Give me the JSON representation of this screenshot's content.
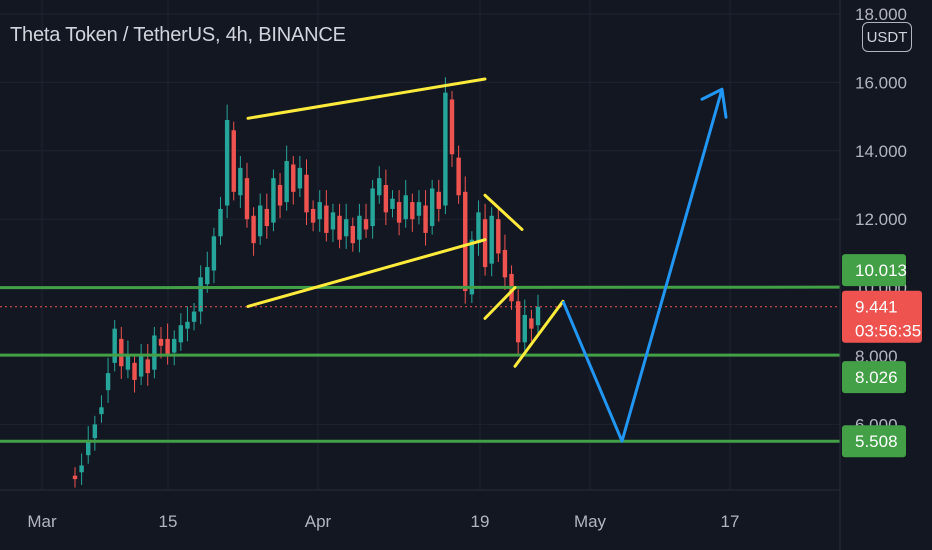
{
  "header": {
    "title": "Theta Token / TetherUS, 4h, BINANCE",
    "currency": "USDT"
  },
  "colors": {
    "background": "#131722",
    "candle_up": "#26a69a",
    "candle_down": "#ef5350",
    "support_line": "#43a047",
    "pattern_line": "#ffeb3b",
    "projection_line": "#2196f3",
    "price_line": "#ef5350"
  },
  "chart_data": {
    "type": "candlestick",
    "y_axis": {
      "ticks": [
        "18.000",
        "16.000",
        "14.000",
        "12.000",
        "10.000",
        "8.000",
        "6.000"
      ],
      "tick_values": [
        18,
        16,
        14,
        12,
        10,
        8,
        6
      ],
      "range": [
        3.8,
        18.3
      ]
    },
    "x_axis": {
      "ticks": [
        "Mar",
        "15",
        "Apr",
        "19",
        "May",
        "17"
      ]
    },
    "horizontal_levels": [
      {
        "label": "10.013",
        "value": 10.013,
        "color": "#43a047"
      },
      {
        "label": "8.026",
        "value": 8.026,
        "color": "#43a047"
      },
      {
        "label": "5.508",
        "value": 5.508,
        "color": "#43a047"
      }
    ],
    "last_price": {
      "label": "9.441",
      "value": 9.441,
      "countdown": "03:56:35",
      "color": "#ef5350"
    },
    "patterns": [
      {
        "name": "channel-upper",
        "points": [
          [
            2021.031,
            14.95
          ],
          [
            2021.0418,
            16.1
          ]
        ]
      },
      {
        "name": "channel-lower",
        "points": [
          [
            2021.031,
            9.45
          ],
          [
            2021.0418,
            11.4
          ]
        ]
      },
      {
        "name": "flag-upper",
        "points": [
          [
            2021.0418,
            12.7
          ],
          [
            2021.0422,
            11.7
          ]
        ]
      },
      {
        "name": "flag-lower",
        "points": [
          [
            2021.0418,
            9.1
          ],
          [
            2021.0421,
            10.0
          ]
        ]
      },
      {
        "name": "wedge-left",
        "points": [
          [
            2021.0421,
            7.7
          ],
          [
            2021.0424,
            9.6
          ]
        ]
      }
    ],
    "projection": {
      "points": [
        [
          2021.0424,
          9.6
        ],
        [
          2021.0505,
          5.508
        ],
        [
          2021.0515,
          15.8
        ]
      ],
      "color": "#2196f3"
    },
    "price_path": [
      [
        4.5,
        4.4
      ],
      [
        4.6,
        4.8
      ],
      [
        5.1,
        5.5
      ],
      [
        5.6,
        6.0
      ],
      [
        6.3,
        6.5
      ],
      [
        7.0,
        7.5
      ],
      [
        7.8,
        8.8
      ],
      [
        8.5,
        7.7
      ],
      [
        7.6,
        8.0
      ],
      [
        7.8,
        7.3
      ],
      [
        7.4,
        8.0
      ],
      [
        7.9,
        7.5
      ],
      [
        7.6,
        8.6
      ],
      [
        8.5,
        8.3
      ],
      [
        8.5,
        8.0
      ],
      [
        8.1,
        8.5
      ],
      [
        8.4,
        8.9
      ],
      [
        8.8,
        9.0
      ],
      [
        9.0,
        9.3
      ],
      [
        9.3,
        10.3
      ],
      [
        10.1,
        10.6
      ],
      [
        10.5,
        11.5
      ],
      [
        11.5,
        12.3
      ],
      [
        12.4,
        14.9
      ],
      [
        14.6,
        12.8
      ],
      [
        12.7,
        13.5
      ],
      [
        13.2,
        12.0
      ],
      [
        12.1,
        11.3
      ],
      [
        11.5,
        12.4
      ],
      [
        12.3,
        11.8
      ],
      [
        11.9,
        13.2
      ],
      [
        13.0,
        12.4
      ],
      [
        12.5,
        13.7
      ],
      [
        13.6,
        12.8
      ],
      [
        12.9,
        13.5
      ],
      [
        13.3,
        12.2
      ],
      [
        12.3,
        11.9
      ],
      [
        12.0,
        12.5
      ],
      [
        12.4,
        11.6
      ],
      [
        11.7,
        12.2
      ],
      [
        12.1,
        11.4
      ],
      [
        11.5,
        12.0
      ],
      [
        11.8,
        11.3
      ],
      [
        11.4,
        12.1
      ],
      [
        12.0,
        11.7
      ],
      [
        11.8,
        12.9
      ],
      [
        12.7,
        13.2
      ],
      [
        13.0,
        12.2
      ],
      [
        12.3,
        12.6
      ],
      [
        12.5,
        11.9
      ],
      [
        12.0,
        12.7
      ],
      [
        12.5,
        12.0
      ],
      [
        12.1,
        12.5
      ],
      [
        12.4,
        11.6
      ],
      [
        11.8,
        12.9
      ],
      [
        12.8,
        12.3
      ],
      [
        12.4,
        15.7
      ],
      [
        15.5,
        13.9
      ],
      [
        13.8,
        12.7
      ],
      [
        12.8,
        9.9
      ],
      [
        9.8,
        11.4
      ],
      [
        11.3,
        12.2
      ],
      [
        12.0,
        10.6
      ],
      [
        10.7,
        12.1
      ],
      [
        12.0,
        11.0
      ],
      [
        11.1,
        10.3
      ],
      [
        10.4,
        9.6
      ],
      [
        9.6,
        8.4
      ],
      [
        8.4,
        9.2
      ],
      [
        9.1,
        8.8
      ],
      [
        8.9,
        9.441
      ]
    ]
  }
}
